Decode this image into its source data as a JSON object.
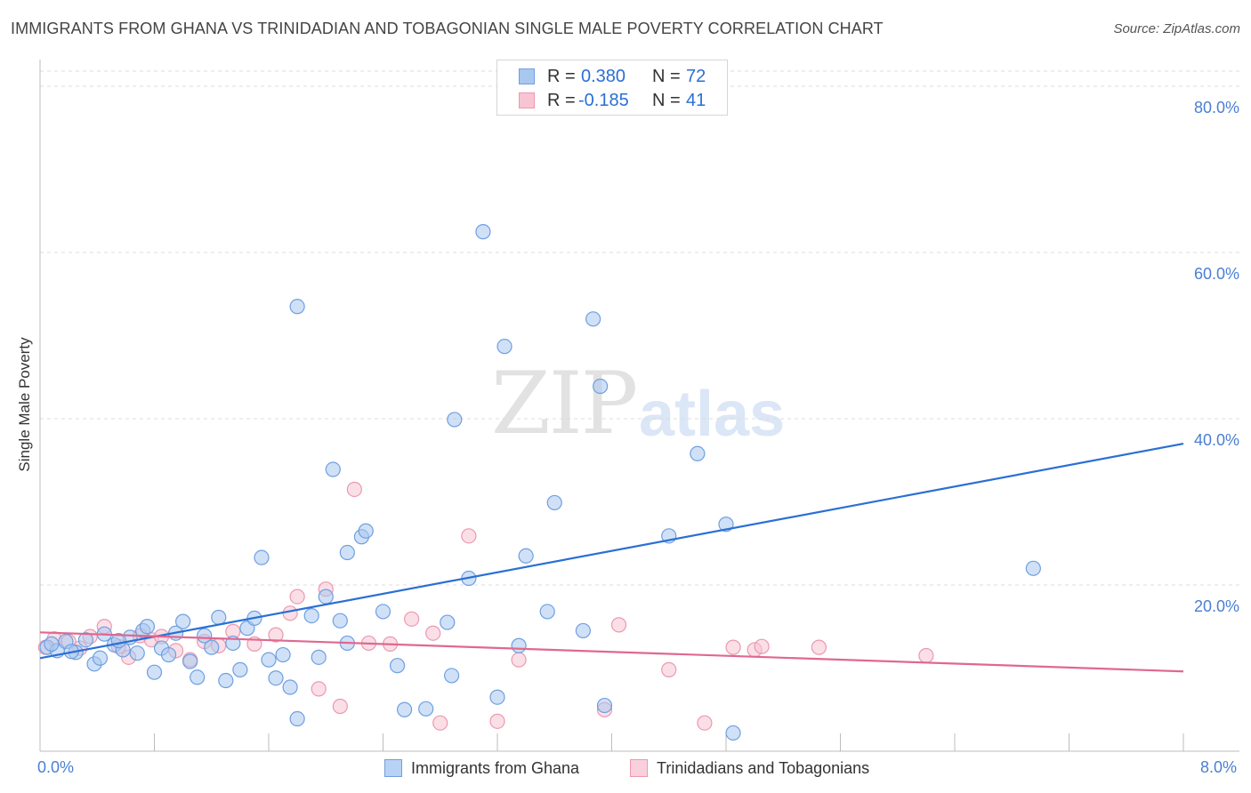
{
  "title": "IMMIGRANTS FROM GHANA VS TRINIDADIAN AND TOBAGONIAN SINGLE MALE POVERTY CORRELATION CHART",
  "source": "Source: ZipAtlas.com",
  "watermark": {
    "zip": "ZIP",
    "atlas": "atlas"
  },
  "legend": {
    "rows": [
      {
        "r_label": "R =",
        "r_value": "0.380",
        "n_label": "N =",
        "n_value": "72",
        "color": "#a9c8f0",
        "border": "#6f9fe0"
      },
      {
        "r_label": "R =",
        "r_value": "-0.185",
        "n_label": "N =",
        "n_value": "41",
        "color": "#f8c4d4",
        "border": "#ec98b0"
      }
    ]
  },
  "bottom_legend": [
    {
      "label": "Immigrants from Ghana",
      "color": "#b8d2f5",
      "border": "#6f9fe0"
    },
    {
      "label": "Trinidadians and Tobagonians",
      "color": "#fad0dc",
      "border": "#ec98b0"
    }
  ],
  "chart_data": {
    "type": "scatter",
    "title": "IMMIGRANTS FROM GHANA VS TRINIDADIAN AND TOBAGONIAN SINGLE MALE POVERTY CORRELATION CHART",
    "xlabel": "",
    "ylabel": "Single Male Poverty",
    "xlim": [
      0,
      8
    ],
    "ylim": [
      0,
      80
    ],
    "x_tick_labels": [
      "0.0%",
      "8.0%"
    ],
    "y_tick_labels": [
      "20.0%",
      "40.0%",
      "60.0%",
      "80.0%"
    ],
    "y_ticks": [
      20,
      40,
      60,
      80
    ],
    "grid": true,
    "legend_position": "top-center",
    "series": [
      {
        "name": "Immigrants from Ghana",
        "color": "#6f9fe0",
        "fill": "#a9c8f0",
        "trend": {
          "x": [
            0,
            8
          ],
          "y": [
            11.2,
            37.0
          ],
          "color": "#2a6fd4"
        },
        "points": [
          [
            0.05,
            12.5
          ],
          [
            0.12,
            12.1
          ],
          [
            0.18,
            13.2
          ],
          [
            0.25,
            11.9
          ],
          [
            0.32,
            13.4
          ],
          [
            0.38,
            10.5
          ],
          [
            0.45,
            14.1
          ],
          [
            0.52,
            12.8
          ],
          [
            0.58,
            12.2
          ],
          [
            0.63,
            13.7
          ],
          [
            0.68,
            11.8
          ],
          [
            0.72,
            14.5
          ],
          [
            0.75,
            15.0
          ],
          [
            0.8,
            9.5
          ],
          [
            0.85,
            12.4
          ],
          [
            0.9,
            11.6
          ],
          [
            0.95,
            14.2
          ],
          [
            1.0,
            15.6
          ],
          [
            1.05,
            10.8
          ],
          [
            1.1,
            8.9
          ],
          [
            1.15,
            13.9
          ],
          [
            1.2,
            12.5
          ],
          [
            1.25,
            16.1
          ],
          [
            1.3,
            8.5
          ],
          [
            1.35,
            13.0
          ],
          [
            1.4,
            9.8
          ],
          [
            1.45,
            14.8
          ],
          [
            1.5,
            16.0
          ],
          [
            1.55,
            23.3
          ],
          [
            1.6,
            11.0
          ],
          [
            1.65,
            8.8
          ],
          [
            1.7,
            11.6
          ],
          [
            1.75,
            7.7
          ],
          [
            1.8,
            53.5
          ],
          [
            1.8,
            3.9
          ],
          [
            1.9,
            16.3
          ],
          [
            1.95,
            11.3
          ],
          [
            2.0,
            18.6
          ],
          [
            2.05,
            33.9
          ],
          [
            2.1,
            15.7
          ],
          [
            2.15,
            13.0
          ],
          [
            2.15,
            23.9
          ],
          [
            2.25,
            25.8
          ],
          [
            2.28,
            26.5
          ],
          [
            2.4,
            16.8
          ],
          [
            2.5,
            10.3
          ],
          [
            2.55,
            5.0
          ],
          [
            2.7,
            5.1
          ],
          [
            2.85,
            15.5
          ],
          [
            2.88,
            9.1
          ],
          [
            2.9,
            39.9
          ],
          [
            3.0,
            20.8
          ],
          [
            3.1,
            62.5
          ],
          [
            3.2,
            6.5
          ],
          [
            3.25,
            48.7
          ],
          [
            3.35,
            12.7
          ],
          [
            3.4,
            23.5
          ],
          [
            3.55,
            16.8
          ],
          [
            3.6,
            29.9
          ],
          [
            3.8,
            14.5
          ],
          [
            3.87,
            52.0
          ],
          [
            3.92,
            43.9
          ],
          [
            3.95,
            5.5
          ],
          [
            4.4,
            25.9
          ],
          [
            4.6,
            35.8
          ],
          [
            4.8,
            27.3
          ],
          [
            4.85,
            2.2
          ],
          [
            6.95,
            22.0
          ],
          [
            0.08,
            12.9
          ],
          [
            0.22,
            12.0
          ],
          [
            0.42,
            11.2
          ],
          [
            0.55,
            13.3
          ]
        ]
      },
      {
        "name": "Trinidadians and Tobagonians",
        "color": "#ec98b0",
        "fill": "#f8c4d4",
        "trend": {
          "x": [
            0,
            8
          ],
          "y": [
            14.3,
            9.6
          ],
          "color": "#e06890"
        },
        "points": [
          [
            0.04,
            12.5
          ],
          [
            0.1,
            13.5
          ],
          [
            0.2,
            13.2
          ],
          [
            0.28,
            12.4
          ],
          [
            0.35,
            13.8
          ],
          [
            0.45,
            15.0
          ],
          [
            0.55,
            12.6
          ],
          [
            0.62,
            11.3
          ],
          [
            0.7,
            13.9
          ],
          [
            0.78,
            13.4
          ],
          [
            0.85,
            13.8
          ],
          [
            0.95,
            12.1
          ],
          [
            1.05,
            11.0
          ],
          [
            1.15,
            13.2
          ],
          [
            1.25,
            12.7
          ],
          [
            1.35,
            14.4
          ],
          [
            1.5,
            12.9
          ],
          [
            1.65,
            14.0
          ],
          [
            1.75,
            16.6
          ],
          [
            1.8,
            18.6
          ],
          [
            1.95,
            7.5
          ],
          [
            2.0,
            19.5
          ],
          [
            2.1,
            5.4
          ],
          [
            2.2,
            31.5
          ],
          [
            2.3,
            13.0
          ],
          [
            2.45,
            12.9
          ],
          [
            2.6,
            15.9
          ],
          [
            2.75,
            14.2
          ],
          [
            2.8,
            3.4
          ],
          [
            3.0,
            25.9
          ],
          [
            3.2,
            3.6
          ],
          [
            3.35,
            11.0
          ],
          [
            3.95,
            5.0
          ],
          [
            4.05,
            15.2
          ],
          [
            4.4,
            9.8
          ],
          [
            4.65,
            3.4
          ],
          [
            4.85,
            12.5
          ],
          [
            5.0,
            12.2
          ],
          [
            5.05,
            12.6
          ],
          [
            5.45,
            12.5
          ],
          [
            6.2,
            11.5
          ]
        ]
      }
    ]
  }
}
